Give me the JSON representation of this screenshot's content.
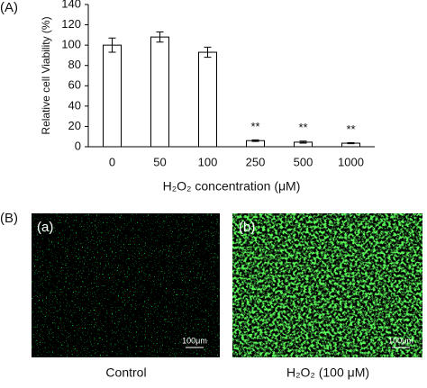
{
  "panels": {
    "a": "(A)",
    "b": "(B)"
  },
  "chart_data": {
    "type": "bar",
    "categories": [
      "0",
      "50",
      "100",
      "250",
      "500",
      "1000"
    ],
    "values": [
      100,
      108,
      93,
      6,
      4.5,
      3.5
    ],
    "errors": [
      7,
      5,
      5,
      0.8,
      1,
      0.5
    ],
    "significance": [
      null,
      null,
      null,
      "**",
      "**",
      "**"
    ],
    "color": "#ffffff",
    "x_label": "H₂O₂ concentration (μM)",
    "y_label": "Relative cell Viability (%)",
    "ylim": [
      0,
      140
    ],
    "yticks": [
      0,
      20,
      40,
      60,
      80,
      100,
      120,
      140
    ],
    "grid": false
  },
  "images": [
    {
      "label": "(a)",
      "scale_bar": "100μm",
      "caption": "Control"
    },
    {
      "label": "(b)",
      "scale_bar": "100μm",
      "caption": "H₂O₂ (100 μM)"
    }
  ]
}
